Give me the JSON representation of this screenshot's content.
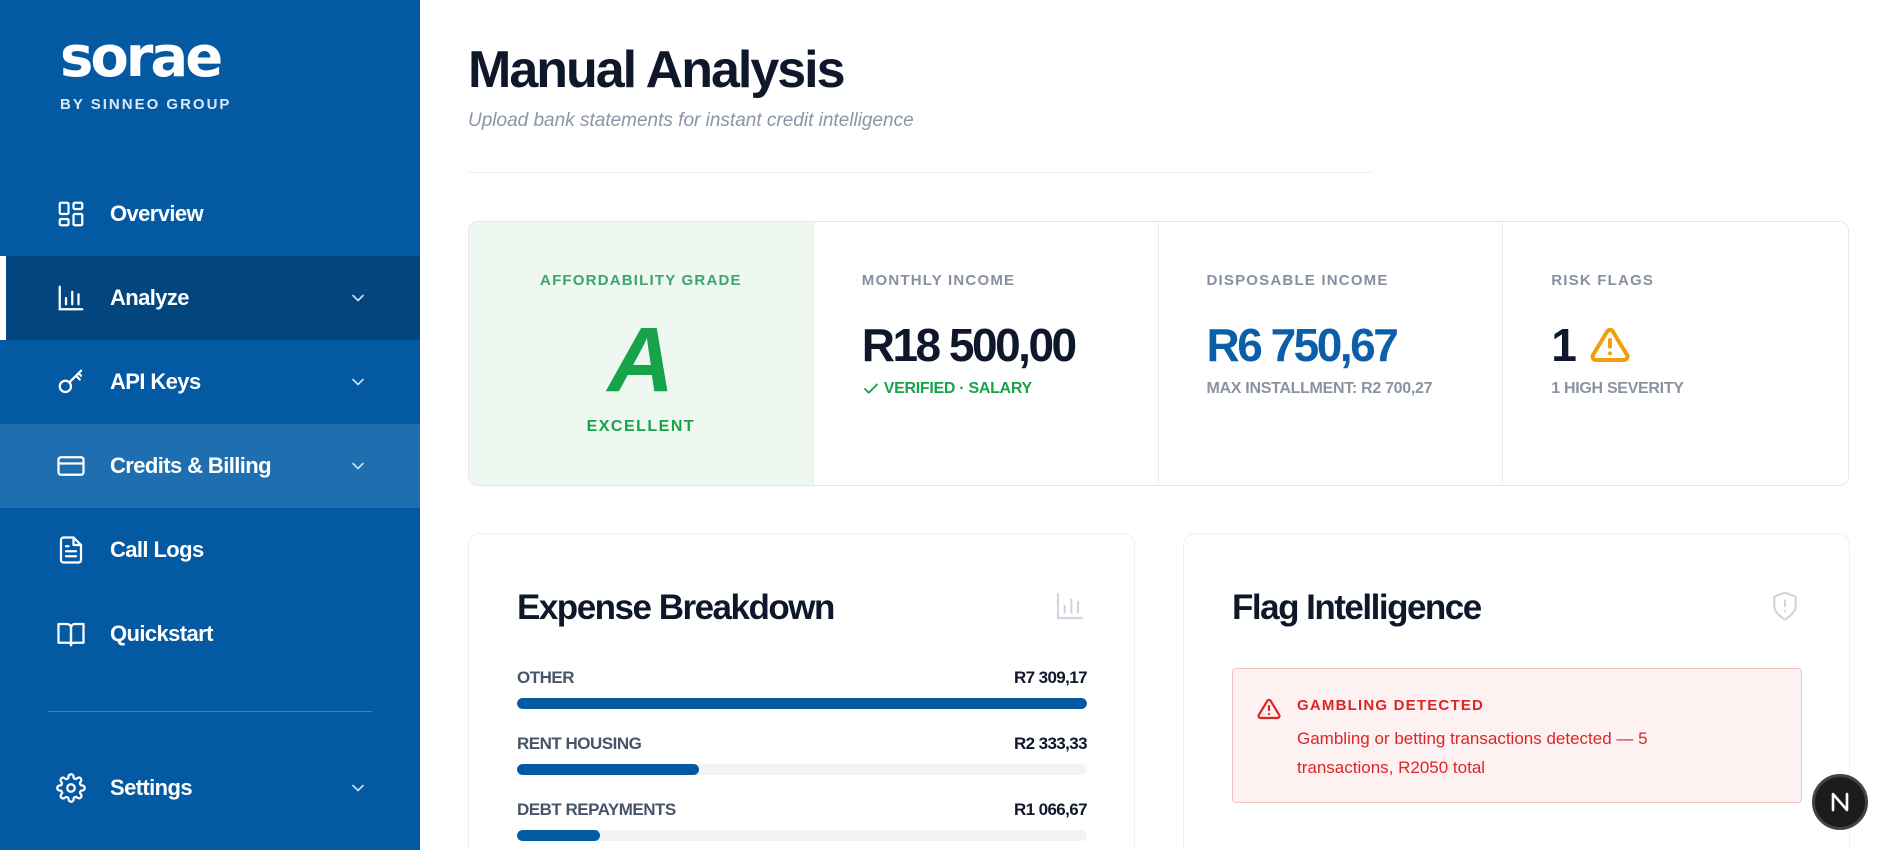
{
  "brand": {
    "name": "sorae",
    "tagline": "BY SINNEO GROUP"
  },
  "sidebar": {
    "items": [
      {
        "label": "Overview",
        "icon": "grid-icon"
      },
      {
        "label": "Analyze",
        "icon": "bar-chart-icon",
        "active": true,
        "expandable": true
      },
      {
        "label": "API Keys",
        "icon": "key-icon",
        "expandable": true
      },
      {
        "label": "Credits & Billing",
        "icon": "credit-card-icon",
        "expandable": true,
        "hover": true
      },
      {
        "label": "Call Logs",
        "icon": "document-icon"
      },
      {
        "label": "Quickstart",
        "icon": "book-open-icon"
      }
    ],
    "settings": {
      "label": "Settings",
      "icon": "gear-icon",
      "expandable": true
    }
  },
  "page": {
    "title": "Manual Analysis",
    "subtitle": "Upload bank statements for instant credit intelligence"
  },
  "stats": {
    "grade": {
      "label": "AFFORDABILITY GRADE",
      "value": "A",
      "word": "EXCELLENT"
    },
    "income": {
      "label": "MONTHLY INCOME",
      "value": "R18 500,00",
      "note": "VERIFIED · SALARY"
    },
    "disposable": {
      "label": "DISPOSABLE INCOME",
      "value": "R6 750,67",
      "note": "MAX INSTALLMENT: R2 700,27"
    },
    "risk": {
      "label": "RISK FLAGS",
      "value": "1",
      "note": "1 HIGH SEVERITY"
    }
  },
  "expense": {
    "title": "Expense Breakdown",
    "rows": [
      {
        "name": "OTHER",
        "amount": "R7 309,17",
        "fraction": 1.0
      },
      {
        "name": "RENT HOUSING",
        "amount": "R2 333,33",
        "fraction": 0.319
      },
      {
        "name": "DEBT REPAYMENTS",
        "amount": "R1 066,67",
        "fraction": 0.146
      }
    ]
  },
  "flags": {
    "title": "Flag Intelligence",
    "items": [
      {
        "title": "GAMBLING DETECTED",
        "description": "Gambling or betting transactions detected — 5 transactions, R2050 total"
      }
    ]
  },
  "badge": {
    "letter": "N"
  },
  "colors": {
    "sidebar": "#0459a3",
    "sidebar_active": "#03467f",
    "accent_blue": "#0b5ea8",
    "success": "#16a34a",
    "danger": "#dc2626",
    "warning": "#f59e0b"
  }
}
